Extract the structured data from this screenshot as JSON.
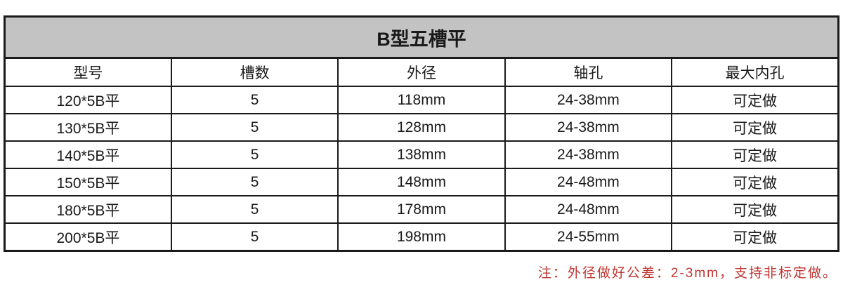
{
  "table": {
    "title": "B型五槽平",
    "columns": [
      "型号",
      "槽数",
      "外径",
      "轴孔",
      "最大内孔"
    ],
    "rows": [
      [
        "120*5B平",
        "5",
        "118mm",
        "24-38mm",
        "可定做"
      ],
      [
        "130*5B平",
        "5",
        "128mm",
        "24-38mm",
        "可定做"
      ],
      [
        "140*5B平",
        "5",
        "138mm",
        "24-38mm",
        "可定做"
      ],
      [
        "150*5B平",
        "5",
        "148mm",
        "24-48mm",
        "可定做"
      ],
      [
        "180*5B平",
        "5",
        "178mm",
        "24-48mm",
        "可定做"
      ],
      [
        "200*5B平",
        "5",
        "198mm",
        "24-55mm",
        "可定做"
      ]
    ]
  },
  "note": {
    "text": "注：外径做好公差：2-3mm，支持非标定做。"
  },
  "colors": {
    "title_background": "#c3c3c3",
    "border": "#1a1a1a",
    "note_red": "#c23531"
  }
}
